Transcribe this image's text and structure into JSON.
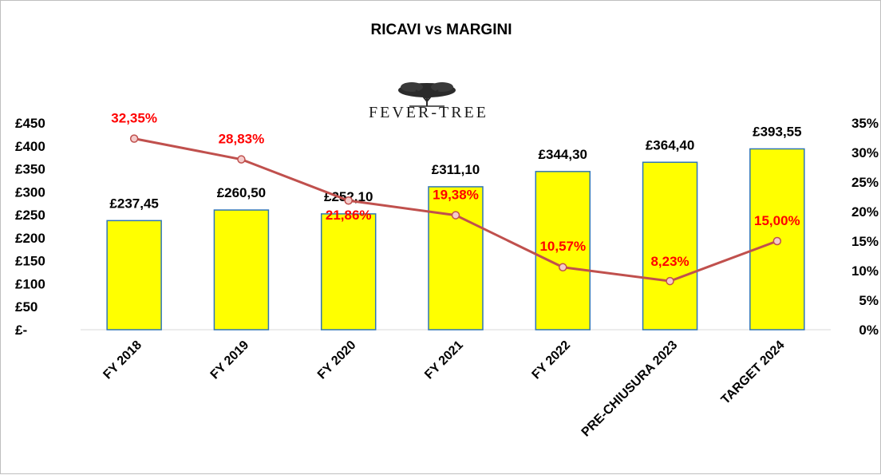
{
  "chart_data": {
    "type": "bar",
    "title": "RICAVI vs MARGINI",
    "logo_text": "FEVER-TREE",
    "categories": [
      "FY 2018",
      "FY 2019",
      "FY 2020",
      "FY 2021",
      "FY 2022",
      "PRE-CHIUSURA 2023",
      "TARGET 2024"
    ],
    "series": [
      {
        "type": "bar",
        "axis": "left",
        "values": [
          237.45,
          260.5,
          252.1,
          311.1,
          344.3,
          364.4,
          393.55
        ],
        "labels": [
          "£237,45",
          "£260,50",
          "£252,10",
          "£311,10",
          "£344,30",
          "£364,40",
          "£393,55"
        ],
        "color": "#FFFF00",
        "border_color": "#2E75B6"
      },
      {
        "type": "line",
        "axis": "right",
        "values": [
          32.35,
          28.83,
          21.86,
          19.38,
          10.57,
          8.23,
          15.0
        ],
        "labels": [
          "32,35%",
          "28,83%",
          "21,86%",
          "19,38%",
          "10,57%",
          "8,23%",
          "15,00%"
        ],
        "color": "#C0504D",
        "label_color": "#FF0000"
      }
    ],
    "y_left": {
      "range": [
        0,
        450
      ],
      "ticks": [
        0,
        50,
        100,
        150,
        200,
        250,
        300,
        350,
        400,
        450
      ],
      "tick_labels": [
        "£-",
        "£50",
        "£100",
        "£150",
        "£200",
        "£250",
        "£300",
        "£350",
        "£400",
        "£450"
      ]
    },
    "y_right": {
      "range": [
        0,
        35
      ],
      "ticks": [
        0,
        5,
        10,
        15,
        20,
        25,
        30,
        35
      ],
      "tick_labels": [
        "0%",
        "5%",
        "10%",
        "15%",
        "20%",
        "25%",
        "30%",
        "35%"
      ]
    },
    "grid": false,
    "legend": "none"
  }
}
